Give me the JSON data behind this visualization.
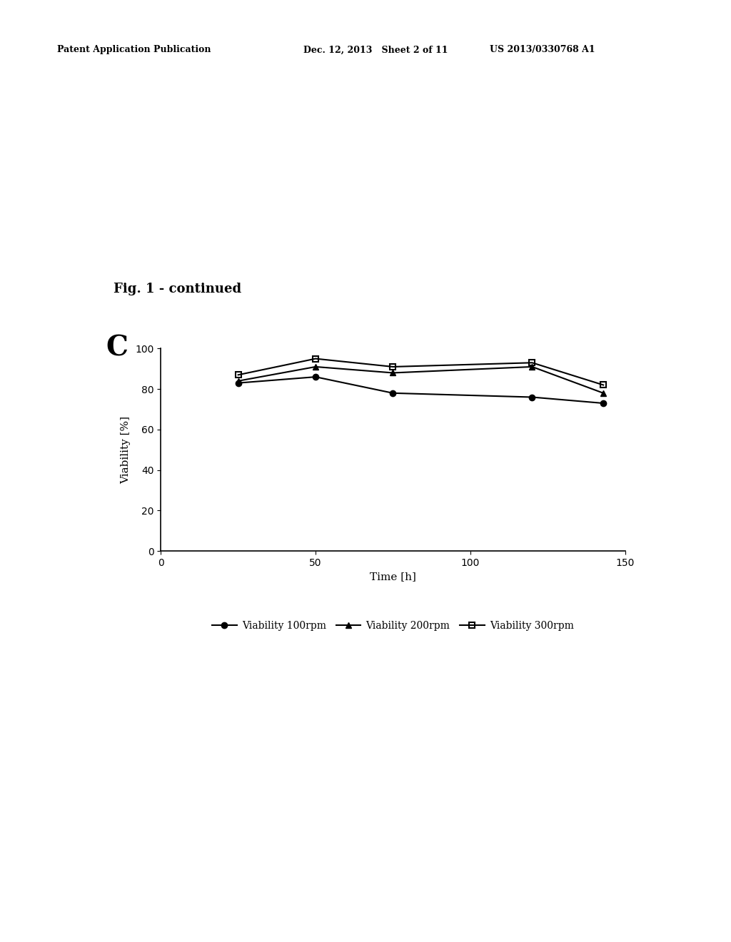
{
  "header_left": "Patent Application Publication",
  "header_center": "Dec. 12, 2013   Sheet 2 of 11",
  "header_right": "US 2013/0330768 A1",
  "fig_label": "Fig. 1 - continued",
  "panel_label": "C",
  "xlabel": "Time [h]",
  "ylabel": "Viability [%]",
  "xlim": [
    0,
    150
  ],
  "ylim": [
    0,
    100
  ],
  "xticks": [
    0,
    50,
    100,
    150
  ],
  "yticks": [
    0,
    20,
    40,
    60,
    80,
    100
  ],
  "series": [
    {
      "label": "Viability 100rpm",
      "x": [
        25,
        50,
        75,
        120,
        143
      ],
      "y": [
        83,
        86,
        78,
        76,
        73
      ],
      "marker": "o",
      "markersize": 6,
      "color": "#000000",
      "linewidth": 1.5,
      "fillstyle": "full"
    },
    {
      "label": "Viability 200rpm",
      "x": [
        25,
        50,
        75,
        120,
        143
      ],
      "y": [
        84,
        91,
        88,
        91,
        78
      ],
      "marker": "^",
      "markersize": 6,
      "color": "#000000",
      "linewidth": 1.5,
      "fillstyle": "full"
    },
    {
      "label": "Viability 300rpm",
      "x": [
        25,
        50,
        75,
        120,
        143
      ],
      "y": [
        87,
        95,
        91,
        93,
        82
      ],
      "marker": "s",
      "markersize": 6,
      "color": "#000000",
      "linewidth": 1.5,
      "fillstyle": "none"
    }
  ],
  "background_color": "#ffffff",
  "legend_fontsize": 10,
  "axis_fontsize": 11,
  "tick_fontsize": 10,
  "header_fontsize": 9,
  "fig_label_fontsize": 13,
  "panel_label_fontsize": 28
}
